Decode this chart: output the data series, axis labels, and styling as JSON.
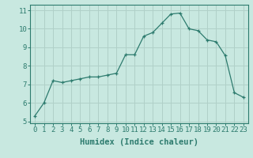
{
  "x": [
    0,
    1,
    2,
    3,
    4,
    5,
    6,
    7,
    8,
    9,
    10,
    11,
    12,
    13,
    14,
    15,
    16,
    17,
    18,
    19,
    20,
    21,
    22,
    23
  ],
  "y": [
    5.3,
    6.0,
    7.2,
    7.1,
    7.2,
    7.3,
    7.4,
    7.4,
    7.5,
    7.6,
    8.6,
    8.6,
    9.6,
    9.8,
    10.3,
    10.8,
    10.85,
    10.0,
    9.9,
    9.4,
    9.3,
    8.55,
    6.55,
    6.3
  ],
  "line_color": "#2d7b6e",
  "marker": "+",
  "marker_color": "#2d7b6e",
  "bg_color": "#c8e8e0",
  "grid_color": "#b0d0c8",
  "plot_bg": "#c8e8e0",
  "xlabel": "Humidex (Indice chaleur)",
  "ylabel": "",
  "xlim": [
    -0.5,
    23.5
  ],
  "ylim": [
    4.9,
    11.3
  ],
  "yticks": [
    5,
    6,
    7,
    8,
    9,
    10,
    11
  ],
  "xticks": [
    0,
    1,
    2,
    3,
    4,
    5,
    6,
    7,
    8,
    9,
    10,
    11,
    12,
    13,
    14,
    15,
    16,
    17,
    18,
    19,
    20,
    21,
    22,
    23
  ],
  "xtick_labels": [
    "0",
    "1",
    "2",
    "3",
    "4",
    "5",
    "6",
    "7",
    "8",
    "9",
    "10",
    "11",
    "12",
    "13",
    "14",
    "15",
    "16",
    "17",
    "18",
    "19",
    "20",
    "21",
    "22",
    "23"
  ],
  "xlabel_fontsize": 7.5,
  "tick_fontsize": 6.5,
  "tick_color": "#2d7b6e",
  "spine_color": "#2d7b6e"
}
